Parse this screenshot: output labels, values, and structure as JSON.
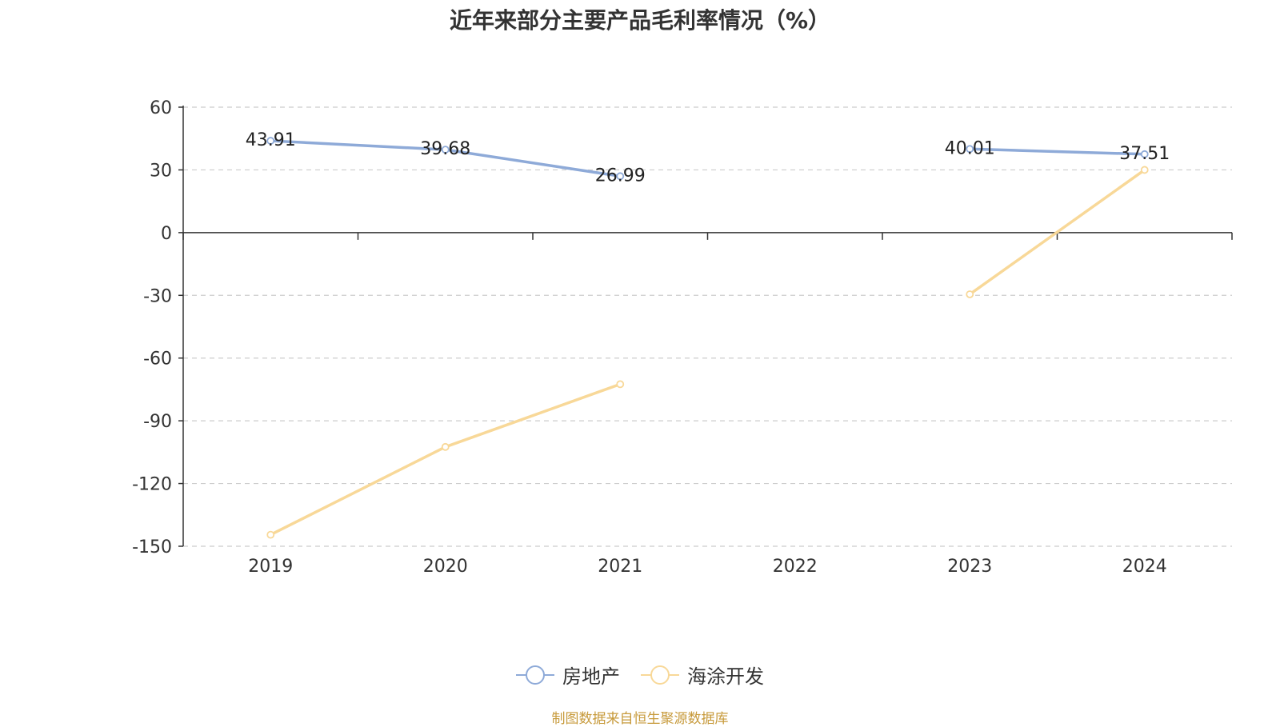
{
  "chart_data": {
    "type": "line",
    "title": "近年来部分主要产品毛利率情况（%）",
    "categories": [
      "2019",
      "2020",
      "2021",
      "2022",
      "2023",
      "2024"
    ],
    "ylim": [
      -150,
      60
    ],
    "yticks": [
      60,
      30,
      0,
      -30,
      -60,
      -90,
      -120,
      -150
    ],
    "ytick_labels": [
      "60",
      "30",
      "0",
      "-30",
      "-60",
      "-90",
      "-120",
      "-150"
    ],
    "grid": true,
    "legend_position": "bottom",
    "series": [
      {
        "name": "房地产",
        "color": "#8eaad8",
        "values": [
          43.91,
          39.68,
          26.99,
          null,
          40.01,
          37.51
        ],
        "labels": [
          "43.91",
          "39.68",
          "26.99",
          "",
          "40.01",
          "37.51"
        ],
        "show_labels": true
      },
      {
        "name": "海涂开发",
        "color": "#f8d898",
        "values": [
          -144.5,
          -102.5,
          -72.5,
          null,
          -29.5,
          30.0
        ],
        "show_labels": false
      }
    ]
  },
  "source_note": "制图数据来自恒生聚源数据库"
}
